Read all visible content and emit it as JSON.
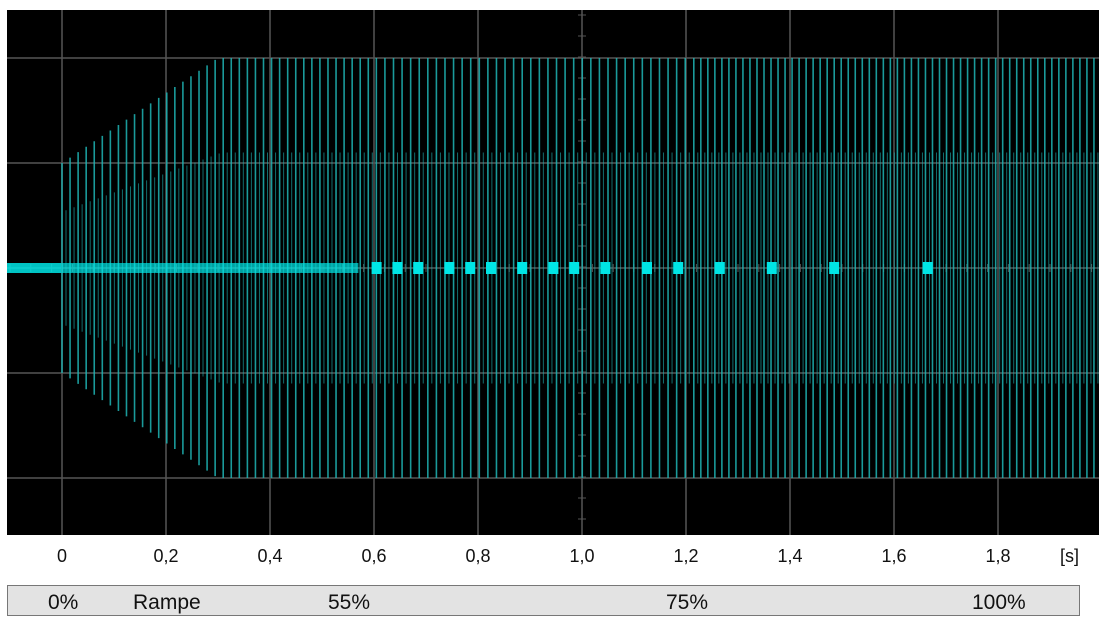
{
  "chart_data": {
    "type": "line",
    "title": "",
    "xlabel": "",
    "x_unit": "[s]",
    "xlim": [
      -0.1,
      2.0
    ],
    "ylim": [
      -4,
      5
    ],
    "x_ticks": [
      "0",
      "0,2",
      "0,4",
      "0,6",
      "0,8",
      "1,0",
      "1,2",
      "1,4",
      "1,6",
      "1,8"
    ],
    "x_tick_values": [
      0,
      0.2,
      0.4,
      0.6,
      0.8,
      1.0,
      1.2,
      1.4,
      1.6,
      1.8
    ],
    "grid": true,
    "series": [
      {
        "color": "#1fb5b5",
        "description_points": [
          {
            "x": 0.0,
            "amplitude": 1.0
          },
          {
            "x": 0.3,
            "amplitude": 2.0
          },
          {
            "x": 2.0,
            "amplitude": 2.0
          }
        ],
        "pulse_markers_x": [
          0.605,
          0.645,
          0.685,
          0.745,
          0.785,
          0.825,
          0.885,
          0.945,
          0.985,
          1.045,
          1.125,
          1.185,
          1.265,
          1.365,
          1.485,
          1.665
        ]
      }
    ],
    "colors": {
      "background": "#000000",
      "grid": "#555555",
      "trace": "#1fb5b5",
      "marker": "#00e5e5"
    }
  },
  "ramp_bar": {
    "labels": [
      "0%",
      "Rampe",
      "55%",
      "75%",
      "100%"
    ],
    "label_x_seconds": [
      0.0,
      0.2,
      0.55,
      1.2,
      1.8
    ]
  }
}
